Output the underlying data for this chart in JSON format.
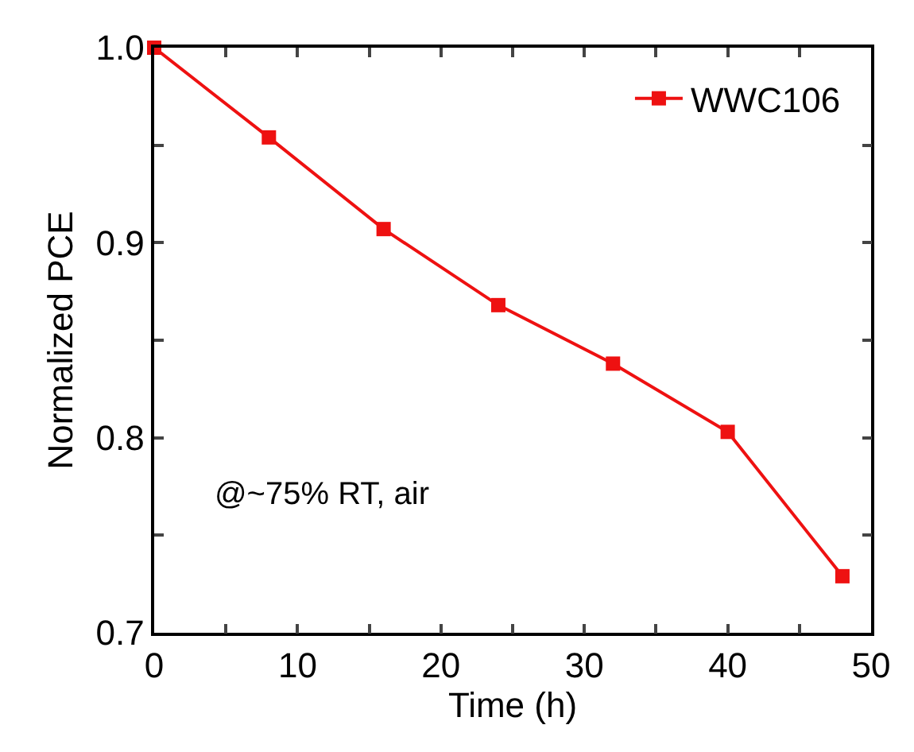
{
  "chart_data": {
    "type": "line",
    "xlabel": "Time (h)",
    "ylabel": "Normalized PCE",
    "x": [
      0,
      8,
      16,
      24,
      32,
      40,
      48
    ],
    "series": [
      {
        "name": "WWC106",
        "color": "#ee1111",
        "values": [
          1.0,
          0.954,
          0.907,
          0.868,
          0.838,
          0.803,
          0.729
        ]
      }
    ],
    "xlim": [
      0,
      50
    ],
    "xticks": [
      0,
      {
        "value": 5,
        "label": null
      },
      10,
      {
        "value": 15,
        "label": null
      },
      20,
      {
        "value": 25,
        "label": null
      },
      30,
      {
        "value": 35,
        "label": null
      },
      40,
      {
        "value": 45,
        "label": null
      },
      50
    ],
    "ylim": [
      0.7,
      1.0
    ],
    "yticks": [
      0.7,
      {
        "value": 0.75,
        "label": null
      },
      0.8,
      {
        "value": 0.85,
        "label": null
      },
      0.9,
      {
        "value": 0.95,
        "label": null
      },
      {
        "value": 1.0,
        "label": "1.0"
      }
    ],
    "annotations": [
      "@~75% RT, air"
    ],
    "grid": false,
    "legend": "top right",
    "marker": "square",
    "line_style": "solid"
  }
}
